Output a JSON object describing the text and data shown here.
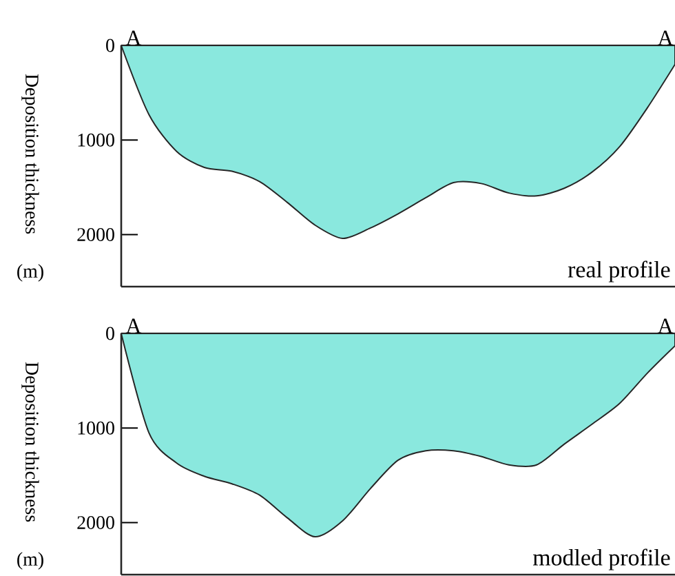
{
  "chart_data": [
    {
      "type": "area",
      "ylabel": "Deposition thickness",
      "categories": [
        null,
        null,
        null,
        null,
        null,
        null,
        null,
        null,
        null,
        null,
        null,
        null,
        null,
        null,
        null,
        null,
        null,
        null,
        null,
        null,
        null
      ],
      "values": [
        0,
        730,
        1120,
        1290,
        1330,
        1440,
        1660,
        1900,
        2040,
        1930,
        1780,
        1610,
        1450,
        1460,
        1560,
        1590,
        1510,
        1340,
        1070,
        660,
        200
      ],
      "color": "#8ae8de",
      "ylim": [
        2550,
        0
      ],
      "yticks": [
        0,
        1000,
        2000
      ],
      "tick_labels": "y",
      "annotations": [
        "A",
        "A",
        "real profile",
        "(m)"
      ]
    },
    {
      "type": "area",
      "ylabel": "Deposition thickness",
      "categories": [
        null,
        null,
        null,
        null,
        null,
        null,
        null,
        null,
        null,
        null,
        null,
        null,
        null,
        null,
        null,
        null,
        null,
        null,
        null,
        null,
        null
      ],
      "values": [
        0,
        1050,
        1370,
        1510,
        1590,
        1710,
        1950,
        2150,
        1980,
        1640,
        1340,
        1240,
        1240,
        1300,
        1390,
        1390,
        1170,
        960,
        740,
        420,
        130
      ],
      "color": "#8ae8de",
      "ylim": [
        2550,
        0
      ],
      "yticks": [
        0,
        1000,
        2000
      ],
      "tick_labels": "y",
      "annotations": [
        "A",
        "A",
        "modled profile",
        "(m)"
      ]
    }
  ]
}
